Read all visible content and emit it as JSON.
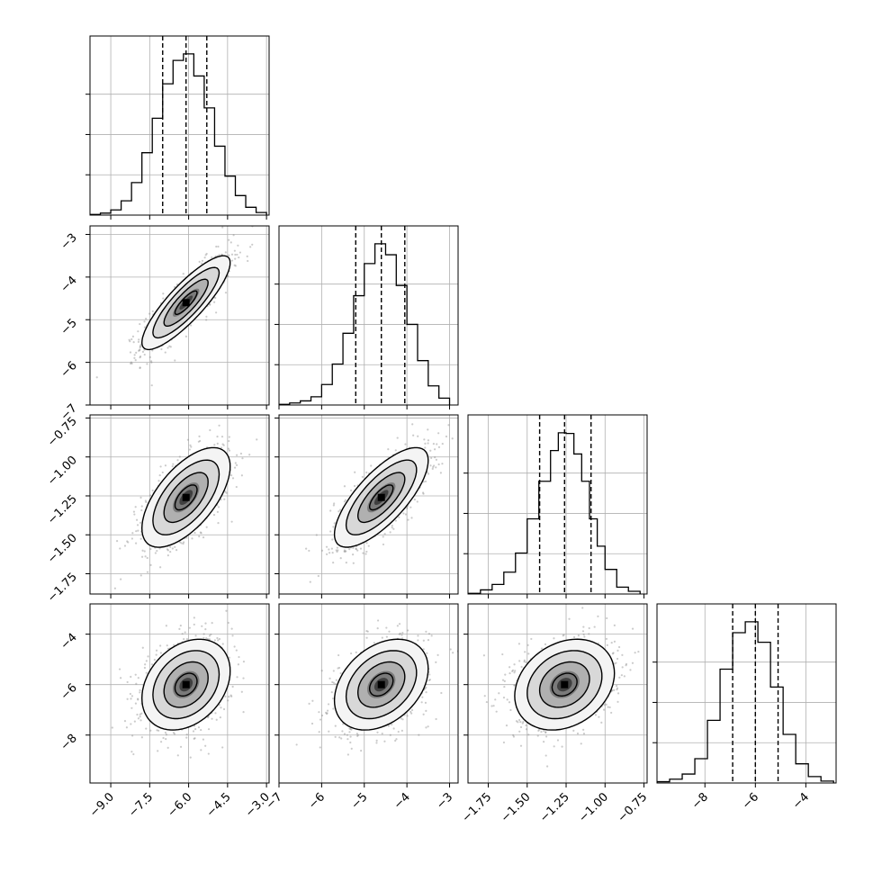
{
  "chart_data": {
    "type": "corner",
    "title": "",
    "params": [
      {
        "index": 0,
        "range": [
          -9.8,
          -2.9
        ],
        "ticks": [
          -9.0,
          -7.5,
          -6.0,
          -4.5,
          -3.0
        ],
        "tick_labels": [
          "−9.0",
          "−7.5",
          "−6.0",
          "−4.5",
          "−3.0"
        ],
        "quantiles": [
          -7.0,
          -6.1,
          -5.3
        ],
        "mean": -6.1,
        "sd": 0.85
      },
      {
        "index": 1,
        "range": [
          -7.0,
          -2.8
        ],
        "ticks": [
          -7,
          -6,
          -5,
          -4,
          -3
        ],
        "tick_labels": [
          "−7",
          "−6",
          "−5",
          "−4",
          "−3"
        ],
        "quantiles": [
          -5.2,
          -4.6,
          -4.05
        ],
        "mean": -4.6,
        "sd": 0.55
      },
      {
        "index": 2,
        "range": [
          -1.88,
          -0.73
        ],
        "ticks": [
          -1.75,
          -1.5,
          -1.25,
          -1.0,
          -0.75
        ],
        "tick_labels": [
          "−1.75",
          "−1.50",
          "−1.25",
          "−1.00",
          "−0.75"
        ],
        "quantiles": [
          -1.42,
          -1.26,
          -1.09
        ],
        "mean": -1.26,
        "sd": 0.16
      },
      {
        "index": 3,
        "range": [
          -9.9,
          -2.8
        ],
        "ticks": [
          -8,
          -6,
          -4
        ],
        "tick_labels": [
          "−8",
          "−6",
          "−4"
        ],
        "quantiles": [
          -6.9,
          -6.0,
          -5.1
        ],
        "mean": -6.0,
        "sd": 0.9
      }
    ],
    "histograms": [
      {
        "param": 0,
        "bin_edges": [
          -9.8,
          -9.4,
          -9.0,
          -8.6,
          -8.2,
          -7.8,
          -7.4,
          -7.0,
          -6.6,
          -6.2,
          -5.8,
          -5.4,
          -5.0,
          -4.6,
          -4.2,
          -3.8,
          -3.4,
          -3.0
        ],
        "counts": [
          1,
          3,
          8,
          22,
          50,
          96,
          149,
          202,
          238,
          248,
          214,
          165,
          106,
          60,
          30,
          12,
          4
        ]
      },
      {
        "param": 1,
        "bin_edges": [
          -7.0,
          -6.75,
          -6.5,
          -6.25,
          -6.0,
          -5.75,
          -5.5,
          -5.25,
          -5.0,
          -4.75,
          -4.5,
          -4.25,
          -4.0,
          -3.75,
          -3.5,
          -3.25,
          -3.0
        ],
        "counts": [
          1,
          3,
          6,
          12,
          30,
          60,
          105,
          160,
          207,
          236,
          220,
          175,
          118,
          65,
          28,
          10
        ]
      },
      {
        "param": 2,
        "bin_edges": [
          -1.875,
          -1.8,
          -1.725,
          -1.65,
          -1.575,
          -1.5,
          -1.425,
          -1.35,
          -1.3,
          -1.25,
          -1.2,
          -1.15,
          -1.1,
          -1.05,
          -1.0,
          -0.925,
          -0.85,
          -0.775
        ],
        "counts": [
          1,
          6,
          14,
          32,
          60,
          110,
          165,
          210,
          236,
          235,
          205,
          165,
          110,
          70,
          36,
          10,
          4
        ]
      },
      {
        "param": 3,
        "bin_edges": [
          -9.9,
          -9.4,
          -8.9,
          -8.4,
          -7.9,
          -7.4,
          -6.9,
          -6.4,
          -5.9,
          -5.4,
          -4.9,
          -4.4,
          -3.9,
          -3.4,
          -2.9
        ],
        "counts": [
          2,
          6,
          14,
          38,
          98,
          178,
          235,
          252,
          220,
          150,
          76,
          30,
          10,
          3
        ]
      }
    ],
    "pairs": [
      {
        "x_param": 0,
        "y_param": 1,
        "correlation": 0.85
      },
      {
        "x_param": 0,
        "y_param": 2,
        "correlation": 0.62
      },
      {
        "x_param": 1,
        "y_param": 2,
        "correlation": 0.74
      },
      {
        "x_param": 0,
        "y_param": 3,
        "correlation": 0.3
      },
      {
        "x_param": 1,
        "y_param": 3,
        "correlation": 0.35
      },
      {
        "x_param": 2,
        "y_param": 3,
        "correlation": 0.25
      }
    ],
    "contour_levels_sigma": [
      0.5,
      1.0,
      1.5,
      2.0
    ],
    "grid": true,
    "colors": {
      "line": "#000000",
      "grid": "#b0b0b0",
      "scatter": "#8c8c8c"
    }
  }
}
